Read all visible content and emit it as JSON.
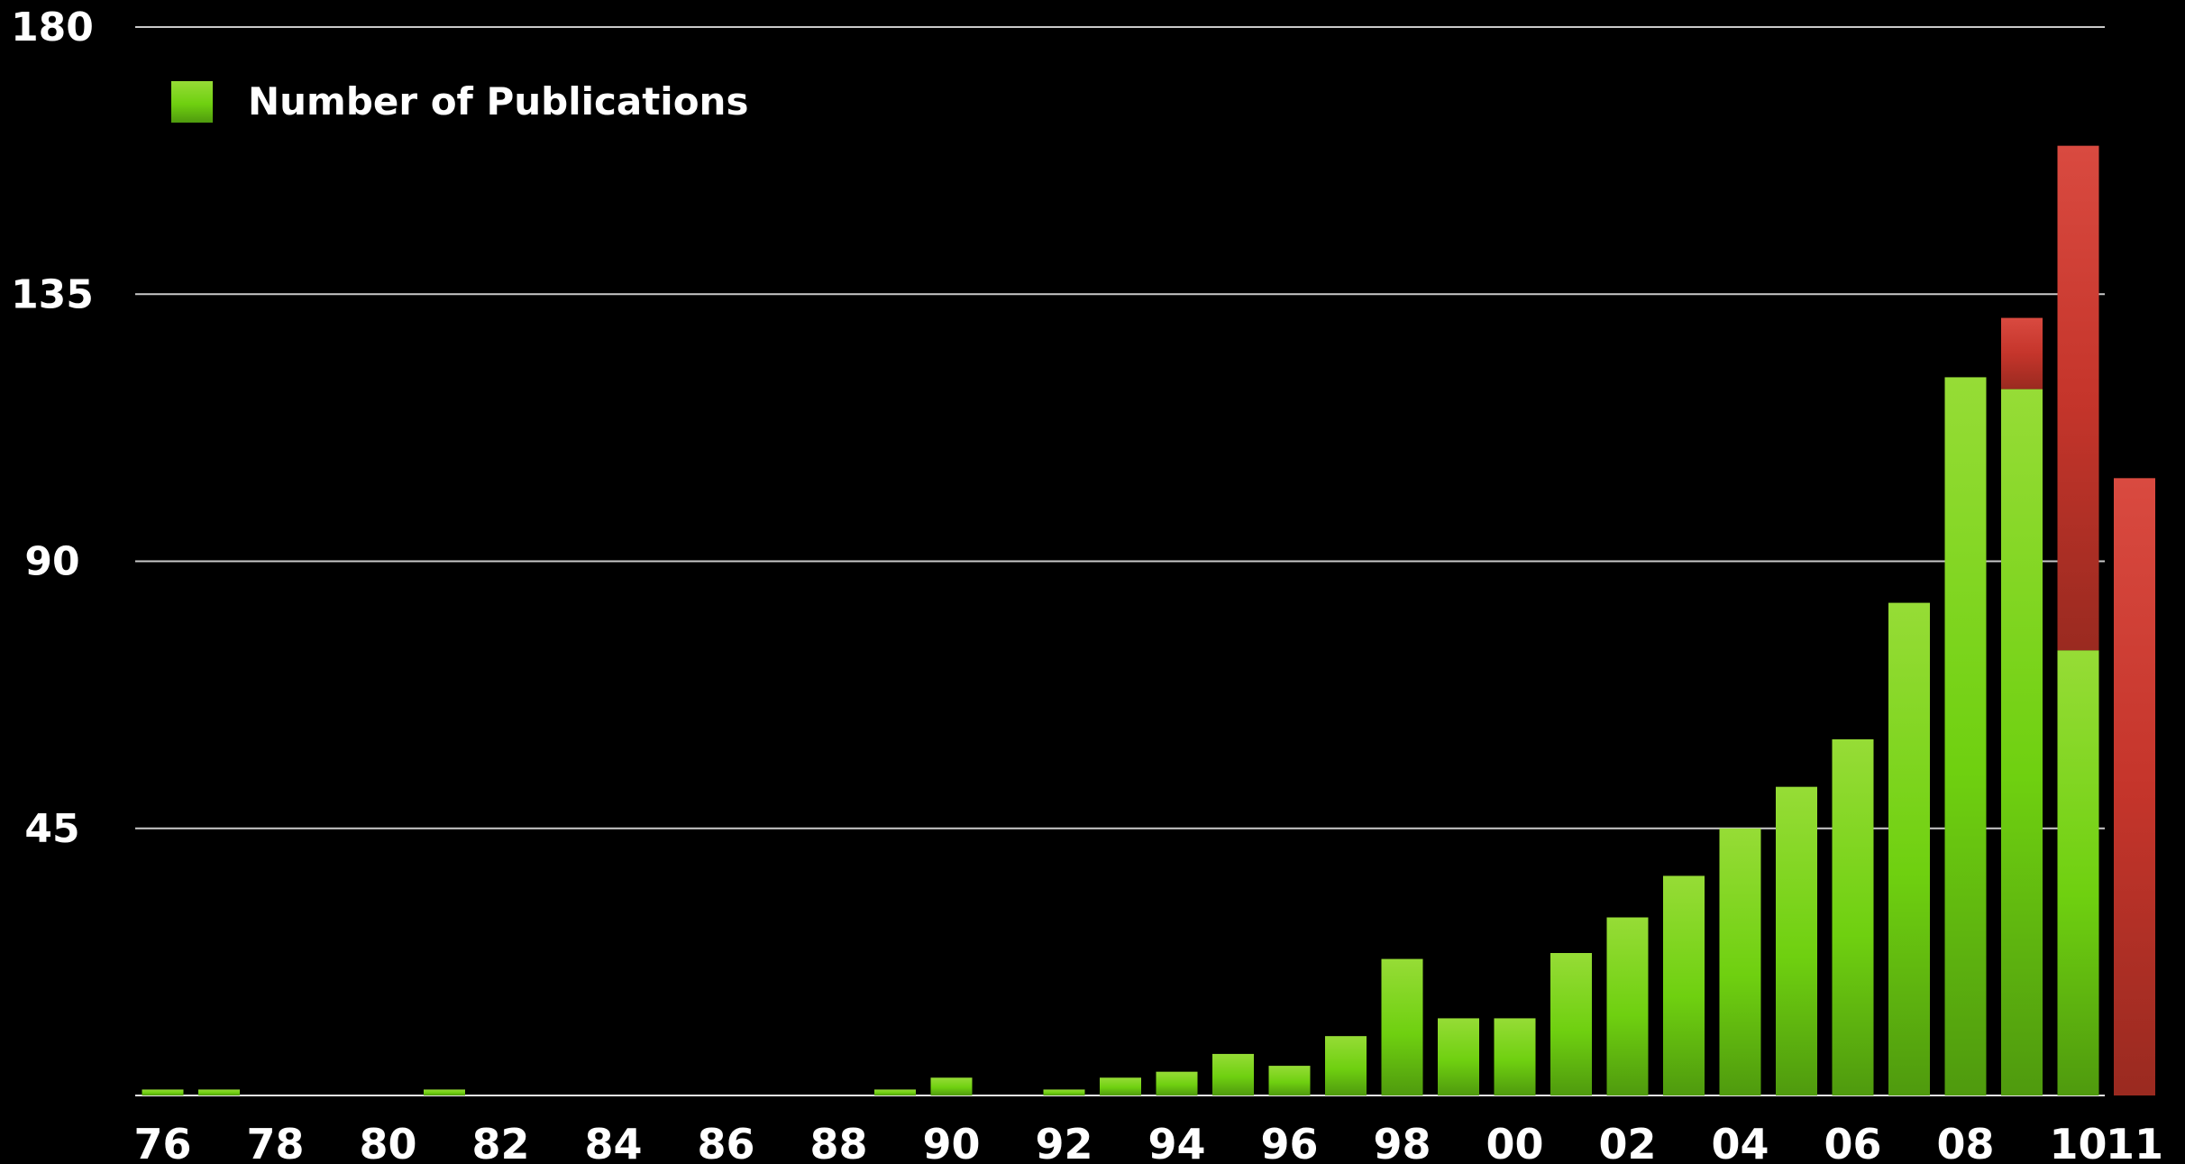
{
  "chart_data": {
    "type": "bar",
    "title": "",
    "xlabel": "",
    "ylabel": "",
    "ylim": [
      0,
      180
    ],
    "yticks": [
      "180",
      "135",
      "90",
      "45"
    ],
    "grid": true,
    "legend": {
      "placement": "top-left",
      "entries": [
        {
          "name": "Number of Publications",
          "color": "#6ccf10"
        }
      ]
    },
    "categories": [
      "76",
      "77",
      "78",
      "79",
      "80",
      "81",
      "82",
      "83",
      "84",
      "85",
      "86",
      "87",
      "88",
      "89",
      "90",
      "91",
      "92",
      "93",
      "94",
      "95",
      "96",
      "97",
      "98",
      "99",
      "00",
      "01",
      "02",
      "03",
      "04",
      "05",
      "06",
      "07",
      "08",
      "09",
      "10",
      "11"
    ],
    "xtick_labels": [
      "76",
      "78",
      "80",
      "82",
      "84",
      "86",
      "88",
      "90",
      "92",
      "94",
      "96",
      "98",
      "00",
      "02",
      "04",
      "06",
      "08",
      "10",
      "11"
    ],
    "highlight_tick": "11",
    "series": [
      {
        "name": "Number of Publications",
        "color": "#6ccf10",
        "values": [
          1,
          1,
          0,
          0,
          0,
          1,
          0,
          0,
          0,
          0,
          0,
          0,
          0,
          1,
          3,
          0,
          1,
          3,
          4,
          7,
          5,
          10,
          23,
          13,
          13,
          24,
          30,
          37,
          45,
          52,
          60,
          83,
          121,
          119,
          75,
          0
        ]
      },
      {
        "name": "",
        "color": "#d8352c",
        "values": [
          0,
          0,
          0,
          0,
          0,
          0,
          0,
          0,
          0,
          0,
          0,
          0,
          0,
          0,
          0,
          0,
          0,
          0,
          0,
          0,
          0,
          0,
          0,
          0,
          0,
          0,
          0,
          0,
          0,
          0,
          0,
          0,
          0,
          12,
          85,
          104
        ]
      }
    ]
  }
}
